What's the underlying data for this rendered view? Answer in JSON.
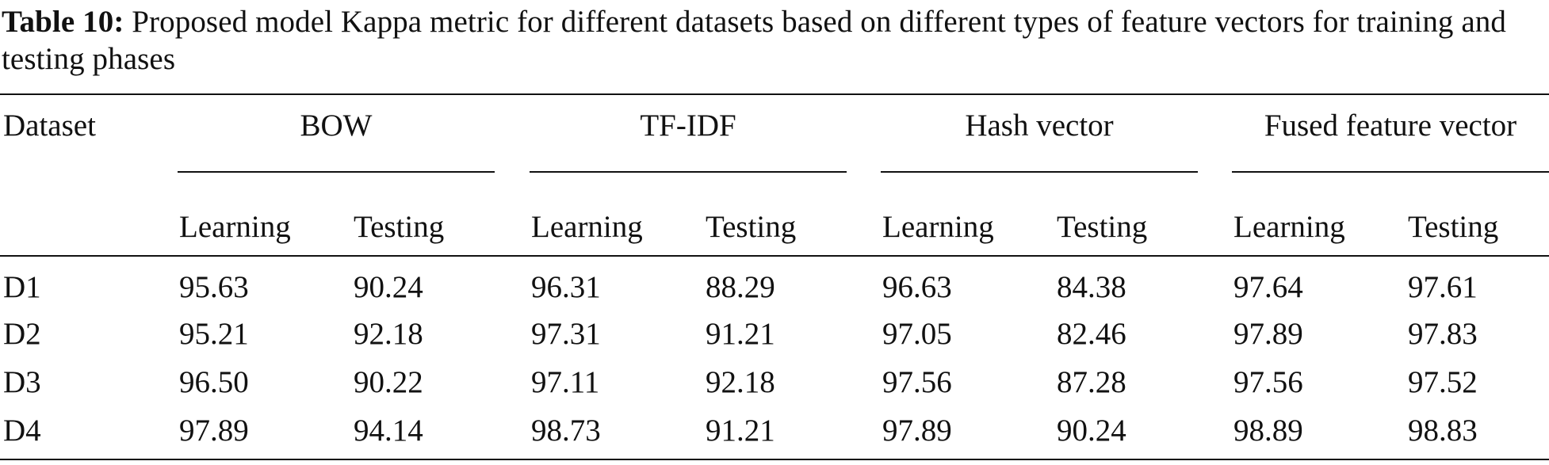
{
  "caption": {
    "label": "Table 10:",
    "text": " Proposed model Kappa metric for different datasets based on different types of feature vectors for training and testing phases"
  },
  "table": {
    "row_header": "Dataset",
    "groups": [
      {
        "name": "BOW",
        "sub": [
          "Learning",
          "Testing"
        ]
      },
      {
        "name": "TF-IDF",
        "sub": [
          "Learning",
          "Testing"
        ]
      },
      {
        "name": "Hash vector",
        "sub": [
          "Learning",
          "Testing"
        ]
      },
      {
        "name": "Fused feature vector",
        "sub": [
          "Learning",
          "Testing"
        ]
      }
    ],
    "rows": [
      {
        "dataset": "D1",
        "values": [
          "95.63",
          "90.24",
          "96.31",
          "88.29",
          "96.63",
          "84.38",
          "97.64",
          "97.61"
        ]
      },
      {
        "dataset": "D2",
        "values": [
          "95.21",
          "92.18",
          "97.31",
          "91.21",
          "97.05",
          "82.46",
          "97.89",
          "97.83"
        ]
      },
      {
        "dataset": "D3",
        "values": [
          "96.50",
          "90.22",
          "97.11",
          "92.18",
          "97.56",
          "87.28",
          "97.56",
          "97.52"
        ]
      },
      {
        "dataset": "D4",
        "values": [
          "97.89",
          "94.14",
          "98.73",
          "91.21",
          "97.89",
          "90.24",
          "98.89",
          "98.83"
        ]
      }
    ]
  }
}
